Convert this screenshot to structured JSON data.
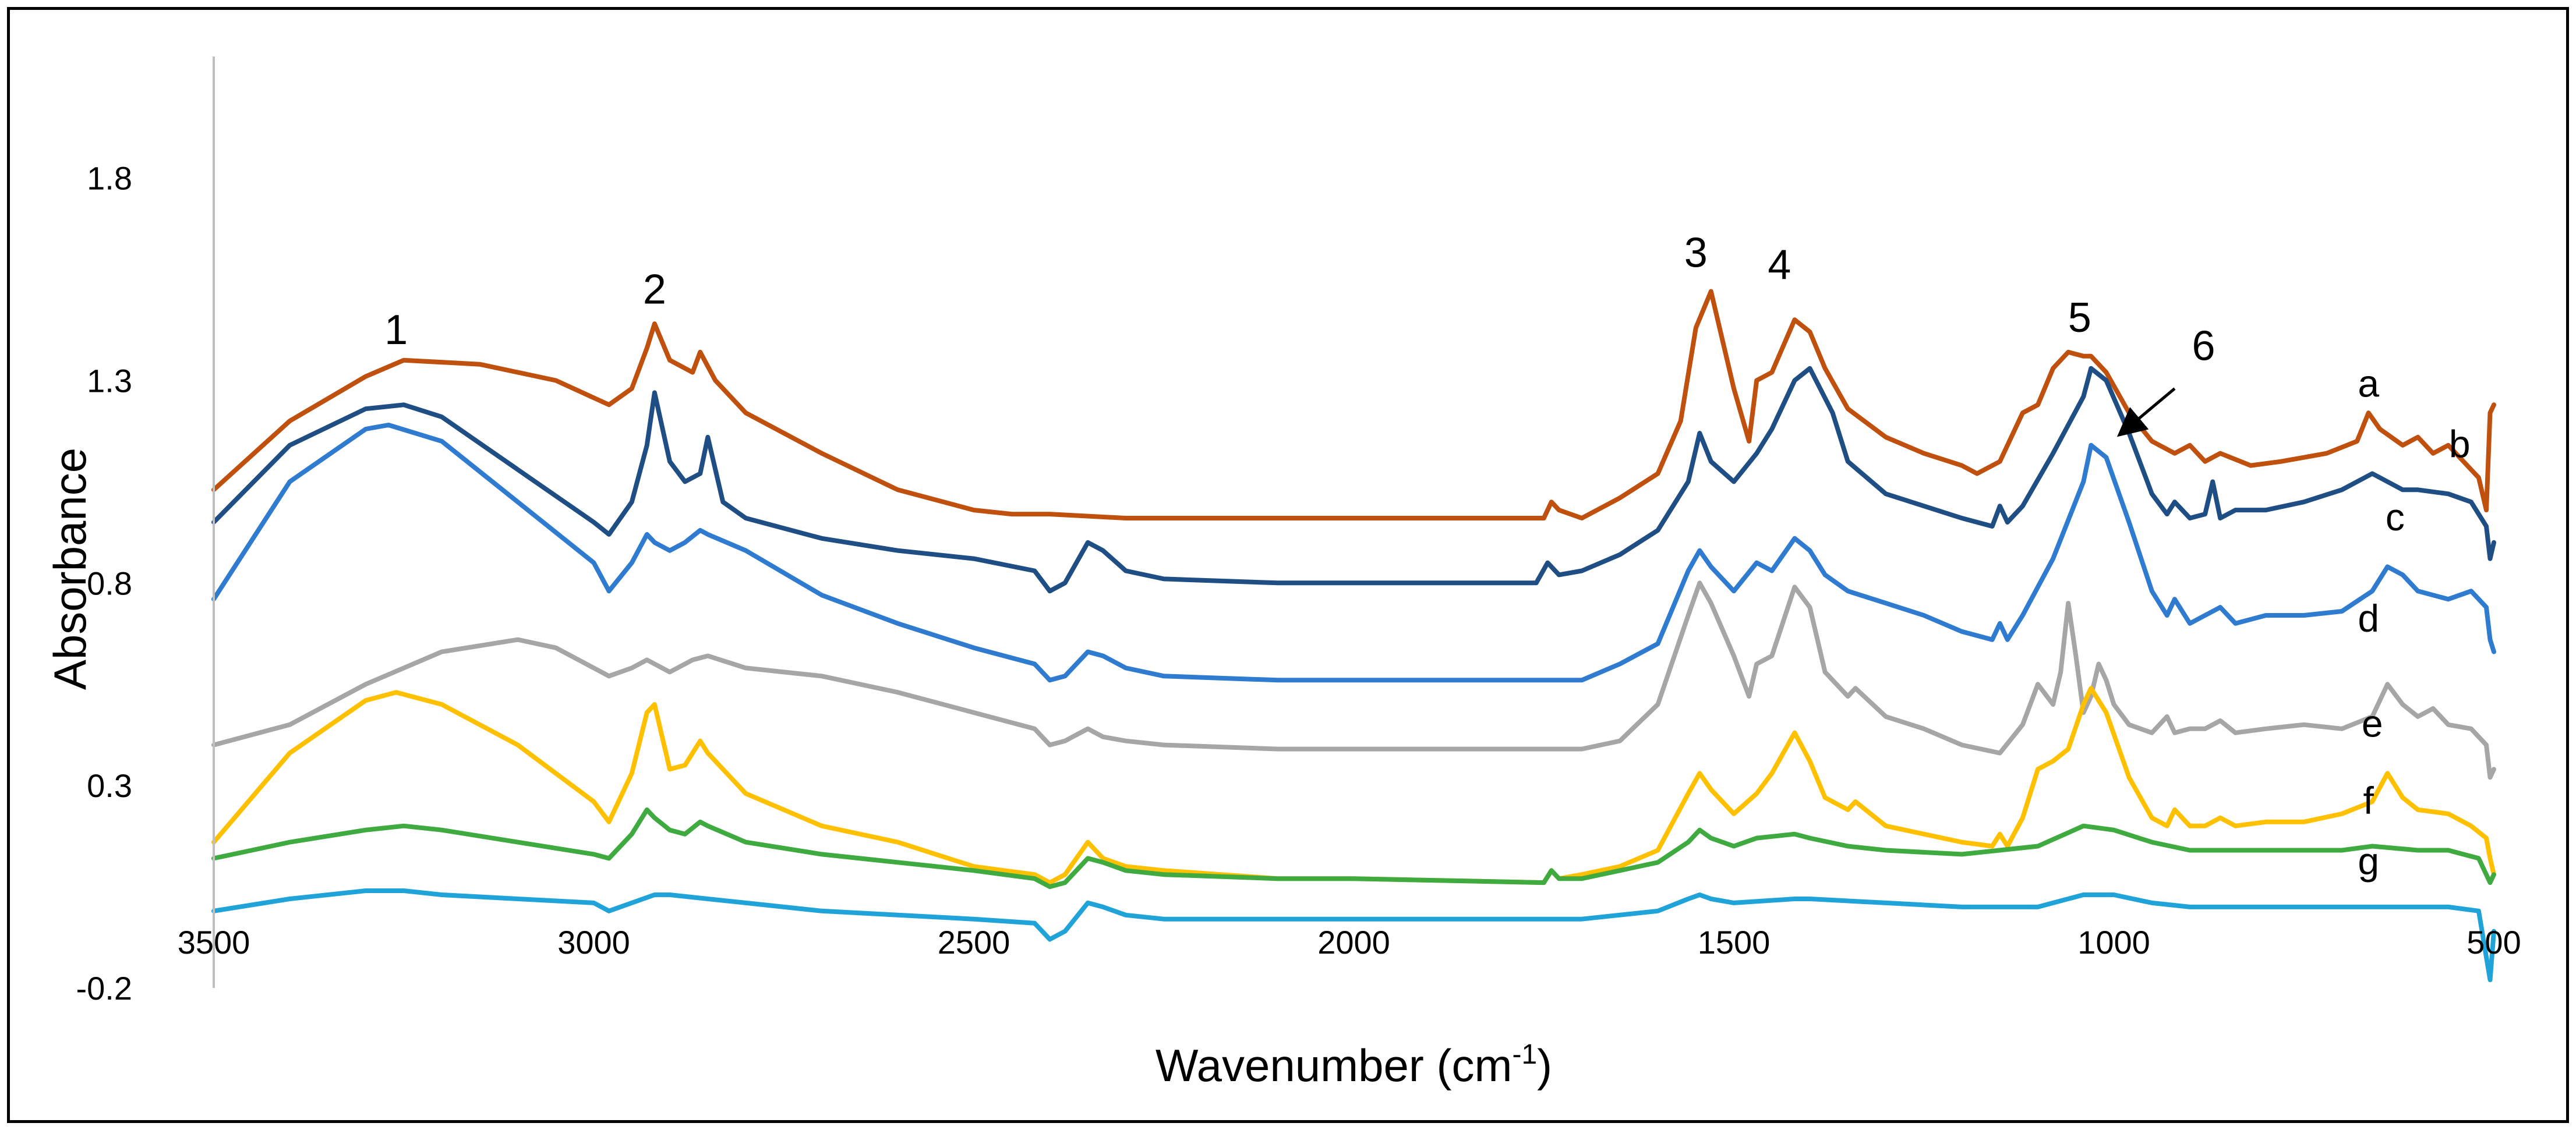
{
  "chart_data": {
    "type": "line",
    "title": "",
    "xlabel": "Wavenumber (cm",
    "xlabel_sup": "-1",
    "xlabel_end": ")",
    "ylabel": "Absorbance",
    "xlim": [
      3500,
      500
    ],
    "ylim": [
      -0.2,
      2.1
    ],
    "x_reversed": true,
    "grid": false,
    "legend": "none",
    "x_ticks": [
      "3500",
      "3000",
      "2500",
      "2000",
      "1500",
      "1000",
      "500"
    ],
    "y_ticks": [
      "1.8",
      "1.3",
      "0.8",
      "0.3",
      "-0.2"
    ],
    "x_tick_values": [
      3500,
      3000,
      2500,
      2000,
      1500,
      1000,
      500
    ],
    "y_tick_values": [
      1.8,
      1.3,
      0.8,
      0.3,
      -0.2
    ],
    "series": [
      {
        "name": "a",
        "color": "#C0500E",
        "x": [
          3500,
          3400,
          3300,
          3250,
          3150,
          3050,
          2980,
          2950,
          2930,
          2920,
          2900,
          2870,
          2860,
          2840,
          2800,
          2700,
          2600,
          2500,
          2450,
          2400,
          2300,
          2000,
          1750,
          1740,
          1730,
          1700,
          1650,
          1600,
          1570,
          1550,
          1530,
          1500,
          1480,
          1470,
          1450,
          1420,
          1400,
          1380,
          1350,
          1300,
          1250,
          1200,
          1180,
          1150,
          1120,
          1100,
          1080,
          1060,
          1040,
          1030,
          1010,
          980,
          950,
          920,
          900,
          880,
          860,
          820,
          780,
          720,
          680,
          665,
          650,
          620,
          600,
          580,
          560,
          540,
          520,
          510,
          505,
          500
        ],
        "y": [
          1.03,
          1.2,
          1.31,
          1.35,
          1.34,
          1.3,
          1.24,
          1.28,
          1.38,
          1.44,
          1.35,
          1.32,
          1.37,
          1.3,
          1.22,
          1.12,
          1.03,
          0.98,
          0.97,
          0.97,
          0.96,
          0.96,
          0.96,
          1.0,
          0.98,
          0.96,
          1.01,
          1.07,
          1.2,
          1.43,
          1.52,
          1.28,
          1.15,
          1.3,
          1.32,
          1.45,
          1.42,
          1.33,
          1.23,
          1.16,
          1.12,
          1.09,
          1.07,
          1.1,
          1.22,
          1.24,
          1.33,
          1.37,
          1.36,
          1.36,
          1.32,
          1.22,
          1.15,
          1.12,
          1.14,
          1.1,
          1.12,
          1.09,
          1.1,
          1.12,
          1.15,
          1.22,
          1.18,
          1.14,
          1.16,
          1.12,
          1.14,
          1.1,
          1.06,
          0.98,
          1.22,
          1.24
        ]
      },
      {
        "name": "b",
        "color": "#1F4E85",
        "x": [
          3500,
          3400,
          3300,
          3250,
          3200,
          3100,
          3000,
          2980,
          2950,
          2930,
          2920,
          2900,
          2880,
          2860,
          2850,
          2830,
          2800,
          2700,
          2600,
          2500,
          2420,
          2400,
          2380,
          2350,
          2330,
          2300,
          2250,
          2100,
          2000,
          1760,
          1745,
          1730,
          1700,
          1650,
          1600,
          1560,
          1545,
          1530,
          1500,
          1470,
          1450,
          1420,
          1400,
          1370,
          1350,
          1300,
          1250,
          1200,
          1160,
          1150,
          1140,
          1120,
          1080,
          1040,
          1030,
          1010,
          980,
          950,
          930,
          920,
          900,
          880,
          870,
          860,
          840,
          800,
          750,
          700,
          660,
          640,
          620,
          600,
          560,
          530,
          510,
          505,
          500
        ],
        "y": [
          0.95,
          1.14,
          1.23,
          1.24,
          1.21,
          1.08,
          0.95,
          0.92,
          1.0,
          1.14,
          1.27,
          1.1,
          1.05,
          1.07,
          1.16,
          1.0,
          0.96,
          0.91,
          0.88,
          0.86,
          0.83,
          0.78,
          0.8,
          0.9,
          0.88,
          0.83,
          0.81,
          0.8,
          0.8,
          0.8,
          0.85,
          0.82,
          0.83,
          0.87,
          0.93,
          1.05,
          1.17,
          1.1,
          1.05,
          1.12,
          1.18,
          1.3,
          1.33,
          1.22,
          1.1,
          1.02,
          0.99,
          0.96,
          0.94,
          0.99,
          0.95,
          0.99,
          1.12,
          1.26,
          1.33,
          1.3,
          1.17,
          1.02,
          0.97,
          1.0,
          0.96,
          0.97,
          1.05,
          0.96,
          0.98,
          0.98,
          1.0,
          1.03,
          1.07,
          1.05,
          1.03,
          1.03,
          1.02,
          1.0,
          0.94,
          0.86,
          0.9
        ]
      },
      {
        "name": "c",
        "color": "#2E7BCF",
        "x": [
          3500,
          3400,
          3300,
          3270,
          3200,
          3100,
          3000,
          2980,
          2950,
          2930,
          2920,
          2900,
          2880,
          2860,
          2850,
          2800,
          2700,
          2600,
          2500,
          2420,
          2400,
          2380,
          2350,
          2330,
          2300,
          2250,
          2100,
          2000,
          1700,
          1650,
          1600,
          1560,
          1545,
          1530,
          1500,
          1470,
          1450,
          1420,
          1400,
          1380,
          1350,
          1300,
          1250,
          1200,
          1160,
          1150,
          1140,
          1120,
          1080,
          1040,
          1030,
          1010,
          980,
          950,
          930,
          920,
          900,
          880,
          860,
          840,
          800,
          750,
          700,
          660,
          640,
          620,
          600,
          560,
          530,
          510,
          505,
          500
        ],
        "y": [
          0.76,
          1.05,
          1.18,
          1.19,
          1.15,
          1.0,
          0.85,
          0.78,
          0.85,
          0.92,
          0.9,
          0.88,
          0.9,
          0.93,
          0.92,
          0.88,
          0.77,
          0.7,
          0.64,
          0.6,
          0.56,
          0.57,
          0.63,
          0.62,
          0.59,
          0.57,
          0.56,
          0.56,
          0.56,
          0.6,
          0.65,
          0.83,
          0.88,
          0.84,
          0.78,
          0.85,
          0.83,
          0.91,
          0.88,
          0.82,
          0.78,
          0.75,
          0.72,
          0.68,
          0.66,
          0.7,
          0.66,
          0.72,
          0.86,
          1.05,
          1.14,
          1.11,
          0.95,
          0.78,
          0.72,
          0.76,
          0.7,
          0.72,
          0.74,
          0.7,
          0.72,
          0.72,
          0.73,
          0.78,
          0.84,
          0.82,
          0.78,
          0.76,
          0.78,
          0.74,
          0.66,
          0.63
        ]
      },
      {
        "name": "d",
        "color": "#A6A6A6",
        "x": [
          3500,
          3400,
          3300,
          3200,
          3100,
          3050,
          3000,
          2980,
          2950,
          2930,
          2900,
          2870,
          2850,
          2800,
          2700,
          2600,
          2500,
          2420,
          2400,
          2380,
          2350,
          2330,
          2300,
          2250,
          2100,
          2000,
          1700,
          1650,
          1600,
          1560,
          1545,
          1530,
          1500,
          1480,
          1470,
          1450,
          1420,
          1400,
          1380,
          1350,
          1340,
          1300,
          1250,
          1200,
          1150,
          1120,
          1100,
          1080,
          1070,
          1060,
          1050,
          1040,
          1030,
          1020,
          1010,
          1000,
          980,
          950,
          930,
          920,
          900,
          880,
          860,
          840,
          800,
          750,
          700,
          660,
          640,
          620,
          600,
          580,
          560,
          530,
          510,
          505,
          500
        ],
        "y": [
          0.4,
          0.45,
          0.55,
          0.63,
          0.66,
          0.64,
          0.59,
          0.57,
          0.59,
          0.61,
          0.58,
          0.61,
          0.62,
          0.59,
          0.57,
          0.53,
          0.48,
          0.44,
          0.4,
          0.41,
          0.44,
          0.42,
          0.41,
          0.4,
          0.39,
          0.39,
          0.39,
          0.41,
          0.5,
          0.72,
          0.8,
          0.75,
          0.62,
          0.52,
          0.6,
          0.62,
          0.79,
          0.74,
          0.58,
          0.52,
          0.54,
          0.47,
          0.44,
          0.4,
          0.38,
          0.45,
          0.55,
          0.5,
          0.58,
          0.75,
          0.62,
          0.48,
          0.52,
          0.6,
          0.56,
          0.5,
          0.45,
          0.43,
          0.47,
          0.43,
          0.44,
          0.44,
          0.46,
          0.43,
          0.44,
          0.45,
          0.44,
          0.47,
          0.55,
          0.5,
          0.47,
          0.49,
          0.45,
          0.44,
          0.4,
          0.32,
          0.34
        ]
      },
      {
        "name": "e",
        "color": "#FFC000",
        "x": [
          3500,
          3400,
          3300,
          3260,
          3200,
          3100,
          3000,
          2980,
          2950,
          2930,
          2920,
          2900,
          2880,
          2860,
          2850,
          2800,
          2700,
          2600,
          2500,
          2420,
          2400,
          2380,
          2350,
          2330,
          2300,
          2250,
          2100,
          2000,
          1750,
          1740,
          1730,
          1700,
          1650,
          1600,
          1560,
          1545,
          1530,
          1500,
          1470,
          1450,
          1420,
          1400,
          1380,
          1350,
          1340,
          1300,
          1250,
          1200,
          1160,
          1150,
          1140,
          1120,
          1100,
          1080,
          1060,
          1040,
          1030,
          1010,
          980,
          950,
          930,
          920,
          900,
          880,
          860,
          840,
          800,
          750,
          700,
          660,
          640,
          620,
          600,
          560,
          530,
          510,
          505,
          500
        ],
        "y": [
          0.16,
          0.38,
          0.51,
          0.53,
          0.5,
          0.4,
          0.26,
          0.21,
          0.33,
          0.48,
          0.5,
          0.34,
          0.35,
          0.41,
          0.38,
          0.28,
          0.2,
          0.16,
          0.1,
          0.08,
          0.06,
          0.08,
          0.16,
          0.12,
          0.1,
          0.09,
          0.07,
          0.07,
          0.06,
          0.09,
          0.07,
          0.08,
          0.1,
          0.14,
          0.28,
          0.33,
          0.29,
          0.23,
          0.28,
          0.33,
          0.43,
          0.36,
          0.27,
          0.24,
          0.26,
          0.2,
          0.18,
          0.16,
          0.15,
          0.18,
          0.15,
          0.22,
          0.34,
          0.36,
          0.39,
          0.5,
          0.54,
          0.48,
          0.32,
          0.22,
          0.2,
          0.24,
          0.2,
          0.2,
          0.22,
          0.2,
          0.21,
          0.21,
          0.23,
          0.26,
          0.33,
          0.27,
          0.24,
          0.23,
          0.2,
          0.17,
          0.12,
          0.08
        ]
      },
      {
        "name": "f",
        "color": "#3FAA3F",
        "x": [
          3500,
          3400,
          3300,
          3250,
          3200,
          3100,
          3000,
          2980,
          2950,
          2930,
          2920,
          2900,
          2880,
          2860,
          2850,
          2800,
          2700,
          2600,
          2500,
          2420,
          2400,
          2380,
          2350,
          2330,
          2300,
          2250,
          2100,
          2000,
          1750,
          1740,
          1730,
          1700,
          1650,
          1600,
          1560,
          1545,
          1530,
          1500,
          1470,
          1420,
          1400,
          1350,
          1300,
          1200,
          1100,
          1040,
          1000,
          950,
          900,
          800,
          700,
          660,
          600,
          560,
          520,
          505,
          500
        ],
        "y": [
          0.12,
          0.16,
          0.19,
          0.2,
          0.19,
          0.16,
          0.13,
          0.12,
          0.18,
          0.24,
          0.22,
          0.19,
          0.18,
          0.21,
          0.2,
          0.16,
          0.13,
          0.11,
          0.09,
          0.07,
          0.05,
          0.06,
          0.12,
          0.11,
          0.09,
          0.08,
          0.07,
          0.07,
          0.06,
          0.09,
          0.07,
          0.07,
          0.09,
          0.11,
          0.16,
          0.19,
          0.17,
          0.15,
          0.17,
          0.18,
          0.17,
          0.15,
          0.14,
          0.13,
          0.15,
          0.2,
          0.19,
          0.16,
          0.14,
          0.14,
          0.14,
          0.15,
          0.14,
          0.14,
          0.12,
          0.06,
          0.08
        ]
      },
      {
        "name": "g",
        "color": "#1FA3D8",
        "x": [
          3500,
          3400,
          3300,
          3250,
          3200,
          3100,
          3000,
          2980,
          2950,
          2920,
          2900,
          2850,
          2800,
          2700,
          2600,
          2500,
          2420,
          2400,
          2380,
          2350,
          2330,
          2300,
          2250,
          2100,
          2000,
          1700,
          1600,
          1560,
          1545,
          1530,
          1500,
          1420,
          1400,
          1300,
          1200,
          1100,
          1040,
          1000,
          950,
          900,
          800,
          700,
          600,
          560,
          520,
          505,
          500
        ],
        "y": [
          -0.01,
          0.02,
          0.04,
          0.04,
          0.03,
          0.02,
          0.01,
          -0.01,
          0.01,
          0.03,
          0.03,
          0.02,
          0.01,
          -0.01,
          -0.02,
          -0.03,
          -0.04,
          -0.08,
          -0.06,
          0.01,
          0.0,
          -0.02,
          -0.03,
          -0.03,
          -0.03,
          -0.03,
          -0.01,
          0.02,
          0.03,
          0.02,
          0.01,
          0.02,
          0.02,
          0.01,
          0.0,
          0.0,
          0.03,
          0.03,
          0.01,
          0.0,
          0.0,
          0.0,
          0.0,
          0.0,
          -0.01,
          -0.18,
          -0.06
        ]
      }
    ],
    "annotations": [
      {
        "label": "1",
        "x": 3260,
        "y": 1.39
      },
      {
        "label": "2",
        "x": 2920,
        "y": 1.49
      },
      {
        "label": "3",
        "x": 1550,
        "y": 1.58
      },
      {
        "label": "4",
        "x": 1440,
        "y": 1.55
      },
      {
        "label": "5",
        "x": 1045,
        "y": 1.42
      },
      {
        "label": "6",
        "x": 882,
        "y": 1.35
      }
    ],
    "arrow": {
      "from": [
        920,
        1.28
      ],
      "to": [
        990,
        1.17
      ]
    },
    "curve_labels": [
      {
        "label": "a",
        "x": 665,
        "y": 1.26
      },
      {
        "label": "b",
        "x": 545,
        "y": 1.11
      },
      {
        "label": "c",
        "x": 630,
        "y": 0.93
      },
      {
        "label": "d",
        "x": 665,
        "y": 0.68
      },
      {
        "label": "e",
        "x": 660,
        "y": 0.42
      },
      {
        "label": "f",
        "x": 665,
        "y": 0.23
      },
      {
        "label": "g",
        "x": 665,
        "y": 0.08
      }
    ]
  }
}
